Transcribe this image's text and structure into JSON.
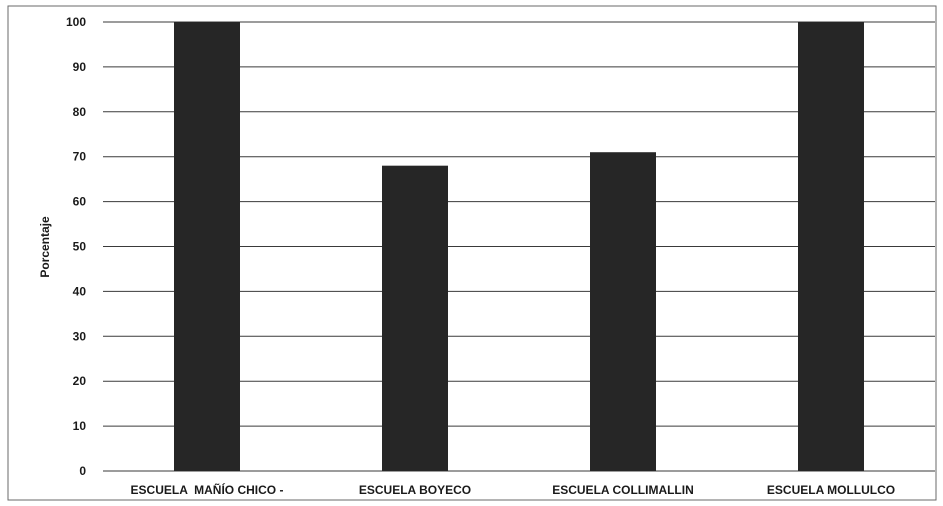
{
  "chart_data": {
    "type": "bar",
    "title": "",
    "xlabel": "",
    "ylabel": "Porcentaje",
    "ylim": [
      0,
      100
    ],
    "yticks": [
      0,
      10,
      20,
      30,
      40,
      50,
      60,
      70,
      80,
      90,
      100
    ],
    "grid": true,
    "legend": "none",
    "categories": [
      "ESCUELA  MAÑÍO CHICO -",
      "ESCUELA BOYECO",
      "ESCUELA COLLIMALLIN",
      "ESCUELA MOLLULCO"
    ],
    "values": [
      100,
      68,
      71,
      100
    ],
    "bar_color": "#262626",
    "grid_color": "#3a3a3a",
    "frame_color": "#6a6a6a"
  }
}
